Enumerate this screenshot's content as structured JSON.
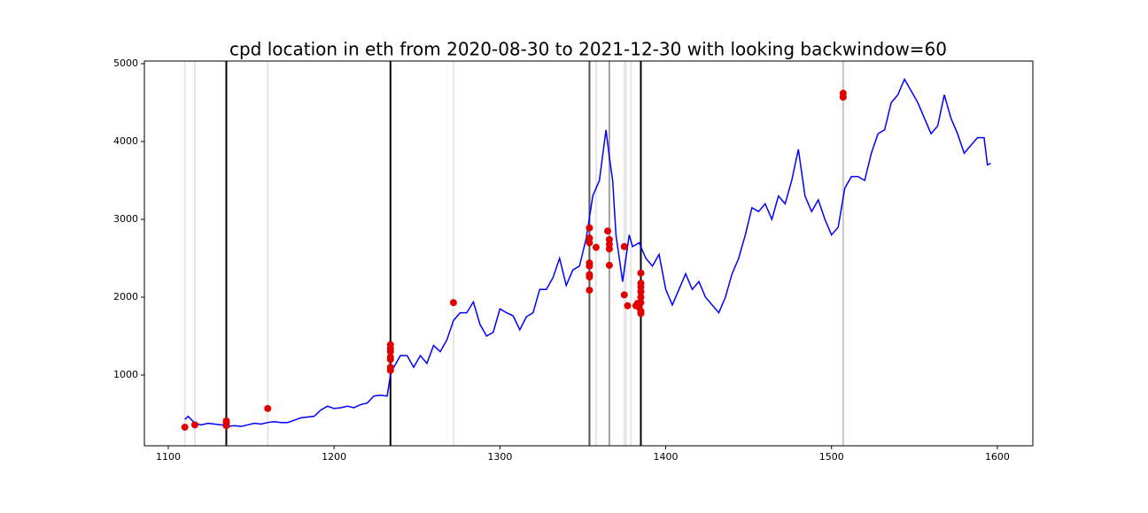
{
  "chart_data": {
    "type": "line",
    "title": "cpd location in eth from 2020-08-30 to 2021-12-30 with looking backwindow=60",
    "xlim": [
      1085.6,
      1621.4
    ],
    "ylim": [
      91,
      5034
    ],
    "xticks": [
      1100,
      1200,
      1300,
      1400,
      1500,
      1600
    ],
    "yticks": [
      1000,
      2000,
      3000,
      4000,
      5000
    ],
    "series": [
      {
        "color": "#0000ff",
        "x": [
          1110,
          1112,
          1116,
          1120,
          1124,
          1128,
          1132,
          1136,
          1140,
          1144,
          1148,
          1152,
          1156,
          1160,
          1164,
          1168,
          1172,
          1176,
          1180,
          1184,
          1188,
          1192,
          1196,
          1200,
          1204,
          1208,
          1212,
          1216,
          1220,
          1224,
          1228,
          1232,
          1234,
          1236,
          1240,
          1244,
          1248,
          1252,
          1256,
          1260,
          1264,
          1268,
          1272,
          1276,
          1280,
          1284,
          1288,
          1292,
          1296,
          1300,
          1304,
          1308,
          1312,
          1316,
          1320,
          1324,
          1328,
          1332,
          1336,
          1340,
          1344,
          1348,
          1352,
          1356,
          1360,
          1364,
          1366,
          1368,
          1370,
          1372,
          1374,
          1376,
          1378,
          1380,
          1384,
          1388,
          1392,
          1396,
          1400,
          1404,
          1408,
          1412,
          1416,
          1420,
          1424,
          1428,
          1432,
          1436,
          1440,
          1444,
          1448,
          1452,
          1456,
          1460,
          1464,
          1468,
          1472,
          1476,
          1480,
          1484,
          1488,
          1492,
          1496,
          1500,
          1504,
          1508,
          1512,
          1516,
          1520,
          1524,
          1528,
          1532,
          1536,
          1540,
          1544,
          1548,
          1552,
          1556,
          1560,
          1564,
          1568,
          1572,
          1576,
          1580,
          1584,
          1588,
          1592,
          1594,
          1596
        ],
        "values": [
          430,
          470,
          380,
          360,
          380,
          370,
          360,
          340,
          350,
          340,
          360,
          380,
          370,
          390,
          400,
          390,
          390,
          420,
          450,
          460,
          470,
          550,
          600,
          570,
          580,
          600,
          580,
          620,
          640,
          730,
          740,
          730,
          1000,
          1100,
          1250,
          1250,
          1100,
          1250,
          1150,
          1380,
          1300,
          1450,
          1700,
          1800,
          1800,
          1940,
          1650,
          1500,
          1550,
          1850,
          1800,
          1760,
          1580,
          1750,
          1800,
          2100,
          2100,
          2250,
          2500,
          2150,
          2350,
          2400,
          2750,
          3300,
          3500,
          4150,
          3800,
          3500,
          2800,
          2500,
          2200,
          2500,
          2800,
          2650,
          2700,
          2500,
          2400,
          2550,
          2100,
          1900,
          2100,
          2300,
          2100,
          2200,
          2000,
          1900,
          1800,
          2000,
          2300,
          2500,
          2800,
          3150,
          3100,
          3200,
          3000,
          3300,
          3200,
          3500,
          3900,
          3300,
          3100,
          3250,
          3000,
          2800,
          2900,
          3400,
          3550,
          3550,
          3500,
          3850,
          4100,
          4150,
          4500,
          4600,
          4800,
          4650,
          4500,
          4300,
          4100,
          4200,
          4600,
          4300,
          4100,
          3850,
          3950,
          4050,
          4050,
          3700,
          3720
        ]
      }
    ],
    "points": {
      "color": "#e00000",
      "x": [
        1110,
        1116,
        1135,
        1135,
        1135,
        1160,
        1234,
        1234,
        1234,
        1234,
        1234,
        1234,
        1234,
        1272,
        1354,
        1354,
        1354,
        1354,
        1354,
        1354,
        1354,
        1354,
        1358,
        1365,
        1366,
        1366,
        1366,
        1366,
        1375,
        1375,
        1377,
        1382,
        1383,
        1384,
        1385,
        1385,
        1385,
        1385,
        1385,
        1385,
        1385,
        1385,
        1507,
        1507
      ],
      "values": [
        330,
        360,
        410,
        380,
        350,
        570,
        1390,
        1340,
        1300,
        1230,
        1200,
        1100,
        1060,
        1930,
        2890,
        2760,
        2700,
        2440,
        2400,
        2290,
        2260,
        2090,
        2640,
        2850,
        2740,
        2680,
        2620,
        2410,
        2650,
        2030,
        1890,
        1890,
        1920,
        1870,
        2310,
        2180,
        2130,
        2070,
        2000,
        1930,
        1820,
        1790,
        4620,
        4570
      ]
    },
    "vlines": [
      {
        "x": 1110,
        "color": "#e6e6e6"
      },
      {
        "x": 1116,
        "color": "#e6e6e6"
      },
      {
        "x": 1160,
        "color": "#e6e6e6"
      },
      {
        "x": 1272,
        "color": "#e6e6e6"
      },
      {
        "x": 1358,
        "color": "#e6e6e6"
      },
      {
        "x": 1375,
        "color": "#e6e6e6"
      },
      {
        "x": 1376,
        "color": "#e6e6e6"
      },
      {
        "x": 1379,
        "color": "#e6e6e6"
      },
      {
        "x": 1507,
        "color": "#c8c8c8"
      },
      {
        "x": 1366,
        "color": "#a0a0a0"
      },
      {
        "x": 1354,
        "color": "#555555"
      },
      {
        "x": 1135,
        "color": "#000000"
      },
      {
        "x": 1234,
        "color": "#000000"
      },
      {
        "x": 1385,
        "color": "#000000"
      }
    ]
  }
}
